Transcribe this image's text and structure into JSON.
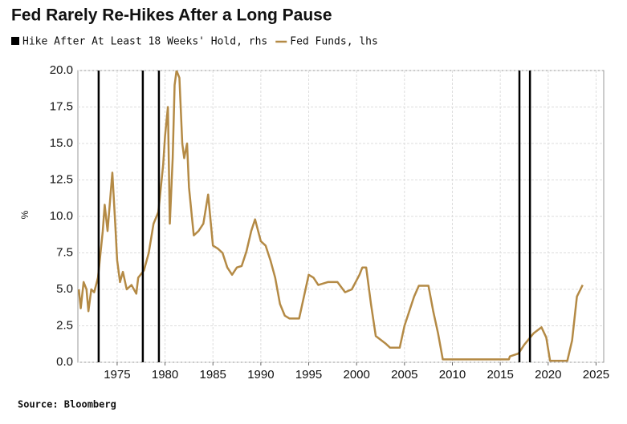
{
  "chart_data": {
    "type": "line",
    "title": "Fed Rarely Re-Hikes After a Long Pause",
    "y_label": "%",
    "source": "Source: Bloomberg",
    "xlim": [
      1970.9,
      2025.8
    ],
    "ylim": [
      0,
      20
    ],
    "xticks": [
      1975,
      1980,
      1985,
      1990,
      1995,
      2000,
      2005,
      2010,
      2015,
      2020,
      2025
    ],
    "yticks": [
      {
        "value": 0,
        "label": "0.0"
      },
      {
        "value": 2.5,
        "label": "2.5"
      },
      {
        "value": 5,
        "label": "5.0"
      },
      {
        "value": 7.5,
        "label": "7.5"
      },
      {
        "value": 10,
        "label": "10.0"
      },
      {
        "value": 12.5,
        "label": "12.5"
      },
      {
        "value": 15,
        "label": "15.0"
      },
      {
        "value": 17.5,
        "label": "17.5"
      },
      {
        "value": 20,
        "label": "20.0"
      }
    ],
    "grid": true,
    "events": {
      "name": "Hike After At Least 18 Weeks' Hold, rhs",
      "color": "#000000",
      "x": [
        1973.07,
        1977.68,
        1979.36,
        2017.0,
        2018.1
      ]
    },
    "x": [
      1971.0,
      1971.2,
      1971.5,
      1971.8,
      1972.0,
      1972.3,
      1972.6,
      1973.0,
      1973.5,
      1973.7,
      1974.0,
      1974.5,
      1974.8,
      1975.0,
      1975.3,
      1975.6,
      1976.0,
      1976.5,
      1977.0,
      1977.2,
      1977.8,
      1978.3,
      1978.8,
      1979.3,
      1979.8,
      1980.0,
      1980.3,
      1980.5,
      1980.8,
      1981.0,
      1981.2,
      1981.5,
      1981.8,
      1982.0,
      1982.3,
      1982.5,
      1982.8,
      1983.0,
      1983.5,
      1984.0,
      1984.5,
      1985.0,
      1985.5,
      1986.0,
      1986.5,
      1987.0,
      1987.5,
      1988.0,
      1988.5,
      1989.0,
      1989.4,
      1990.0,
      1990.5,
      1991.0,
      1991.5,
      1992.0,
      1992.5,
      1993.0,
      1994.0,
      1994.5,
      1995.0,
      1995.5,
      1996.0,
      1997.0,
      1998.0,
      1998.8,
      1999.5,
      2000.3,
      2000.6,
      2001.0,
      2001.5,
      2002.0,
      2003.0,
      2003.5,
      2004.5,
      2005.0,
      2006.0,
      2006.5,
      2007.5,
      2008.0,
      2008.5,
      2009.0,
      2015.9,
      2016.0,
      2016.9,
      2017.5,
      2018.5,
      2019.3,
      2019.8,
      2020.2,
      2022.0,
      2022.5,
      2023.0,
      2023.6
    ],
    "series": [
      {
        "name": "Fed Funds, lhs",
        "color": "#b48a45",
        "values": [
          5.0,
          3.7,
          5.5,
          5.0,
          3.5,
          5.0,
          4.8,
          5.8,
          9.0,
          10.8,
          9.0,
          13.0,
          9.5,
          7.0,
          5.5,
          6.2,
          5.0,
          5.3,
          4.7,
          5.8,
          6.3,
          7.5,
          9.5,
          10.3,
          13.5,
          15.5,
          17.5,
          9.5,
          14.0,
          19.0,
          20,
          19.5,
          15.0,
          14.0,
          15.0,
          12.0,
          10.0,
          8.7,
          9.0,
          9.5,
          11.5,
          8.0,
          7.8,
          7.5,
          6.5,
          6.0,
          6.5,
          6.6,
          7.6,
          9.0,
          9.8,
          8.3,
          8.0,
          7.0,
          5.8,
          4.0,
          3.2,
          3.0,
          3.0,
          4.5,
          6.0,
          5.8,
          5.3,
          5.5,
          5.5,
          4.8,
          5.0,
          6.0,
          6.5,
          6.5,
          4.0,
          1.8,
          1.3,
          1.0,
          1.0,
          2.5,
          4.5,
          5.25,
          5.25,
          3.5,
          2.0,
          0.2,
          0.2,
          0.4,
          0.6,
          1.2,
          2.0,
          2.4,
          1.7,
          0.1,
          0.1,
          1.5,
          4.5,
          5.3
        ]
      }
    ]
  }
}
